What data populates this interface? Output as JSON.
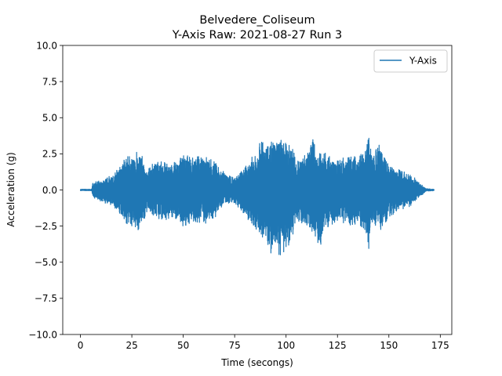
{
  "chart_data": {
    "type": "line",
    "title": "Belvedere_Coliseum",
    "subtitle": "Y-Axis Raw: 2021-08-27 Run 3",
    "xlabel": "Time (secongs)",
    "ylabel": "Acceleration (g)",
    "xlim": [
      -8.6,
      180.6
    ],
    "ylim": [
      -10.0,
      10.0
    ],
    "xticks": [
      0,
      25,
      50,
      75,
      100,
      125,
      150,
      175
    ],
    "xtick_labels": [
      "0",
      "25",
      "50",
      "75",
      "100",
      "125",
      "150",
      "175"
    ],
    "yticks": [
      -10.0,
      -7.5,
      -5.0,
      -2.5,
      0.0,
      2.5,
      5.0,
      7.5,
      10.0
    ],
    "ytick_labels": [
      "−10.0",
      "−7.5",
      "−5.0",
      "−2.5",
      "0.0",
      "2.5",
      "5.0",
      "7.5",
      "10.0"
    ],
    "grid": false,
    "legend_position": "top-right",
    "series": [
      {
        "name": "Y-Axis",
        "color": "#1f77b4",
        "x_range": [
          0,
          172
        ],
        "envelope": {
          "t": [
            0,
            5.5,
            6,
            10,
            15,
            20,
            22,
            25,
            27,
            28,
            30,
            32,
            35,
            40,
            45,
            50,
            55,
            60,
            65,
            70,
            75,
            80,
            85,
            88,
            90,
            92,
            94,
            95,
            97,
            100,
            103,
            105,
            110,
            113,
            115,
            116,
            120,
            125,
            130,
            135,
            138,
            140,
            142,
            145,
            146,
            150,
            155,
            160,
            163,
            165,
            168,
            172
          ],
          "upper": [
            0.05,
            0.05,
            0.5,
            0.7,
            1.0,
            1.8,
            2.5,
            2.3,
            2.6,
            2.8,
            2.4,
            1.3,
            1.9,
            2.0,
            1.8,
            2.6,
            2.2,
            2.5,
            2.0,
            1.2,
            0.8,
            1.6,
            2.6,
            3.5,
            3.0,
            3.6,
            4.0,
            4.1,
            3.4,
            4.0,
            3.3,
            1.9,
            2.6,
            3.5,
            2.8,
            2.7,
            2.5,
            2.1,
            2.3,
            2.4,
            2.6,
            4.2,
            2.1,
            3.4,
            2.7,
            1.7,
            1.4,
            1.1,
            0.8,
            0.5,
            0.1,
            0.05
          ],
          "lower": [
            -0.05,
            -0.05,
            -0.5,
            -0.8,
            -1.1,
            -2.0,
            -2.3,
            -2.6,
            -2.8,
            -2.9,
            -2.5,
            -1.6,
            -1.8,
            -2.1,
            -2.0,
            -2.6,
            -2.2,
            -2.4,
            -2.0,
            -1.0,
            -0.9,
            -1.8,
            -2.7,
            -3.4,
            -3.3,
            -4.3,
            -4.5,
            -4.0,
            -4.7,
            -4.2,
            -3.4,
            -2.0,
            -2.8,
            -3.0,
            -3.4,
            -4.1,
            -2.6,
            -2.2,
            -2.4,
            -2.5,
            -2.7,
            -4.3,
            -2.3,
            -3.0,
            -2.8,
            -1.9,
            -1.5,
            -1.2,
            -0.8,
            -0.5,
            -0.1,
            -0.05
          ]
        }
      }
    ]
  }
}
